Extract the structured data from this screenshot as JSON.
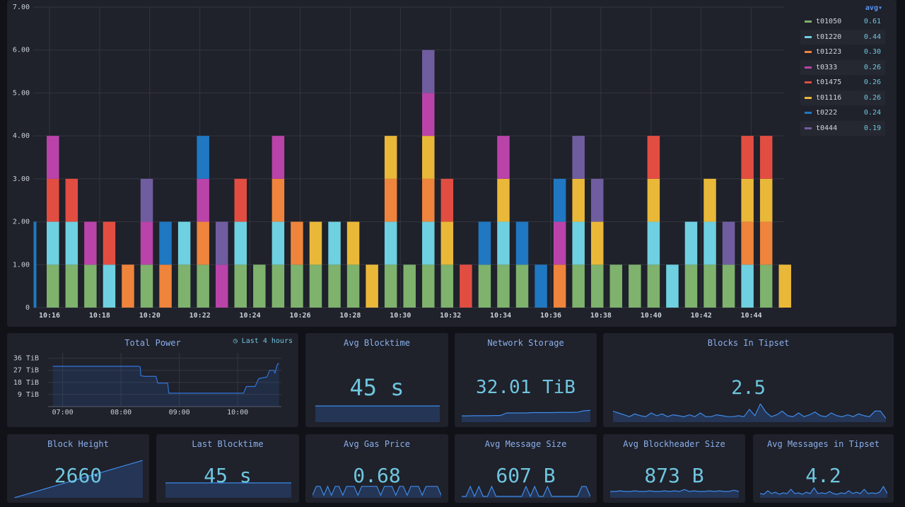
{
  "chart_data": [
    {
      "type": "bar",
      "title": "",
      "stacked": true,
      "ylim": [
        0,
        7
      ],
      "yticks": [
        "0",
        "1.00",
        "2.00",
        "3.00",
        "4.00",
        "5.00",
        "6.00",
        "7.00"
      ],
      "xtick_labels": [
        "10:16",
        "10:18",
        "10:20",
        "10:22",
        "10:24",
        "10:26",
        "10:28",
        "10:30",
        "10:32",
        "10:34",
        "10:36",
        "10:38",
        "10:40",
        "10:42",
        "10:44"
      ],
      "xtick_every": 4,
      "xtick_start": 1,
      "series_keys": [
        "t01050",
        "t01220",
        "t01223",
        "t0333",
        "t01475",
        "t01116",
        "t0222",
        "t0444"
      ],
      "stacks": [
        [
          [
            "t0222",
            2
          ]
        ],
        [
          [
            "t01050",
            1
          ],
          [
            "t01220",
            1
          ],
          [
            "t01475",
            1
          ],
          [
            "t0333",
            1
          ]
        ],
        [
          [
            "t01050",
            1
          ],
          [
            "t01220",
            1
          ],
          [
            "t01475",
            1
          ]
        ],
        [
          [
            "t01050",
            1
          ],
          [
            "t0333",
            1
          ]
        ],
        [
          [
            "t01220",
            1
          ],
          [
            "t01475",
            1
          ]
        ],
        [
          [
            "t01223",
            1
          ]
        ],
        [
          [
            "t01050",
            1
          ],
          [
            "t0333",
            1
          ],
          [
            "t0444",
            1
          ]
        ],
        [
          [
            "t01223",
            1
          ],
          [
            "t0222",
            1
          ]
        ],
        [
          [
            "t01050",
            1
          ],
          [
            "t01220",
            1
          ]
        ],
        [
          [
            "t01050",
            1
          ],
          [
            "t01223",
            1
          ],
          [
            "t0333",
            1
          ],
          [
            "t0222",
            1
          ]
        ],
        [
          [
            "t0333",
            1
          ],
          [
            "t0444",
            1
          ]
        ],
        [
          [
            "t01050",
            1
          ],
          [
            "t01220",
            1
          ],
          [
            "t01475",
            1
          ]
        ],
        [
          [
            "t01050",
            1
          ]
        ],
        [
          [
            "t01050",
            1
          ],
          [
            "t01220",
            1
          ],
          [
            "t01223",
            1
          ],
          [
            "t0333",
            1
          ]
        ],
        [
          [
            "t01050",
            1
          ],
          [
            "t01223",
            1
          ]
        ],
        [
          [
            "t01050",
            1
          ],
          [
            "t01116",
            1
          ]
        ],
        [
          [
            "t01050",
            1
          ],
          [
            "t01220",
            1
          ]
        ],
        [
          [
            "t01050",
            1
          ],
          [
            "t01116",
            1
          ]
        ],
        [
          [
            "t01116",
            1
          ]
        ],
        [
          [
            "t01050",
            1
          ],
          [
            "t01220",
            1
          ],
          [
            "t01223",
            1
          ],
          [
            "t01116",
            1
          ]
        ],
        [
          [
            "t01050",
            1
          ]
        ],
        [
          [
            "t01050",
            1
          ],
          [
            "t01220",
            1
          ],
          [
            "t01223",
            1
          ],
          [
            "t01116",
            1
          ],
          [
            "t0333",
            1
          ],
          [
            "t0444",
            1
          ]
        ],
        [
          [
            "t01050",
            1
          ],
          [
            "t01116",
            1
          ],
          [
            "t01475",
            1
          ]
        ],
        [
          [
            "t01475",
            1
          ]
        ],
        [
          [
            "t01050",
            1
          ],
          [
            "t0222",
            1
          ]
        ],
        [
          [
            "t01050",
            1
          ],
          [
            "t01220",
            1
          ],
          [
            "t01116",
            1
          ],
          [
            "t0333",
            1
          ]
        ],
        [
          [
            "t01050",
            1
          ],
          [
            "t0222",
            1
          ]
        ],
        [
          [
            "t0222",
            1
          ]
        ],
        [
          [
            "t01223",
            1
          ],
          [
            "t0333",
            1
          ],
          [
            "t0222",
            1
          ]
        ],
        [
          [
            "t01050",
            1
          ],
          [
            "t01220",
            1
          ],
          [
            "t01116",
            1
          ],
          [
            "t0444",
            1
          ]
        ],
        [
          [
            "t01050",
            1
          ],
          [
            "t01116",
            1
          ],
          [
            "t0444",
            1
          ]
        ],
        [
          [
            "t01050",
            1
          ]
        ],
        [
          [
            "t01050",
            1
          ]
        ],
        [
          [
            "t01050",
            1
          ],
          [
            "t01220",
            1
          ],
          [
            "t01116",
            1
          ],
          [
            "t01475",
            1
          ]
        ],
        [
          [
            "t01220",
            1
          ]
        ],
        [
          [
            "t01050",
            1
          ],
          [
            "t01220",
            1
          ]
        ],
        [
          [
            "t01050",
            1
          ],
          [
            "t01220",
            1
          ],
          [
            "t01116",
            1
          ]
        ],
        [
          [
            "t01050",
            1
          ],
          [
            "t0444",
            1
          ]
        ],
        [
          [
            "t01220",
            1
          ],
          [
            "t01223",
            1
          ],
          [
            "t01116",
            1
          ],
          [
            "t01475",
            1
          ]
        ],
        [
          [
            "t01050",
            1
          ],
          [
            "t01223",
            1
          ],
          [
            "t01116",
            1
          ],
          [
            "t01475",
            1
          ]
        ],
        [
          [
            "t01116",
            1
          ]
        ]
      ]
    },
    {
      "type": "line",
      "title": "Total Power",
      "ylim": [
        0,
        40
      ],
      "ytick_values": [
        9,
        18,
        27,
        36
      ],
      "ytick_labels": [
        "9 TiB",
        "18 TiB",
        "27 TiB",
        "36 TiB"
      ],
      "xlim": [
        6.75,
        10.75
      ],
      "xtick_values": [
        7,
        8,
        9,
        10
      ],
      "xtick_labels": [
        "07:00",
        "08:00",
        "09:00",
        "10:00"
      ],
      "x": [
        6.83,
        7.0,
        7.5,
        8.0,
        8.3,
        8.33,
        8.34,
        8.4,
        8.6,
        8.63,
        8.8,
        8.82,
        9.5,
        9.7,
        10.0,
        10.1,
        10.15,
        10.2,
        10.3,
        10.35,
        10.37,
        10.5,
        10.55,
        10.6,
        10.62,
        10.64,
        10.67,
        10.69,
        10.71
      ],
      "y": [
        30,
        30,
        30,
        30,
        30,
        29.5,
        23,
        22.5,
        22.5,
        17.5,
        17.5,
        10,
        10,
        10,
        10,
        10,
        15,
        15,
        15,
        20,
        21,
        22,
        27,
        27,
        27,
        25,
        30,
        32,
        32
      ]
    }
  ],
  "legend": {
    "header": "avg▾",
    "items": [
      {
        "name": "t01050",
        "avg": "0.61",
        "color": "#7eb26d"
      },
      {
        "name": "t01220",
        "avg": "0.44",
        "color": "#6ed0e0"
      },
      {
        "name": "t01223",
        "avg": "0.30",
        "color": "#ef843c"
      },
      {
        "name": "t0333",
        "avg": "0.26",
        "color": "#ba43a9"
      },
      {
        "name": "t01475",
        "avg": "0.26",
        "color": "#e24d42"
      },
      {
        "name": "t01116",
        "avg": "0.26",
        "color": "#eab839"
      },
      {
        "name": "t0222",
        "avg": "0.24",
        "color": "#1f78c1"
      },
      {
        "name": "t0444",
        "avg": "0.19",
        "color": "#705da0"
      }
    ]
  },
  "panels": {
    "total_power": {
      "title": "Total Power",
      "time_range": "Last 4 hours"
    },
    "avg_blocktime": {
      "title": "Avg Blocktime",
      "value": "45 s",
      "spark": [
        0.5,
        0.5,
        0.5,
        0.5,
        0.5,
        0.5,
        0.5,
        0.5,
        0.5,
        0.5,
        0.5,
        0.5
      ],
      "spark_mode": "flat"
    },
    "network_storage": {
      "title": "Network Storage",
      "value": "32.01 TiB",
      "spark": [
        0.34,
        0.34,
        0.35,
        0.35,
        0.35,
        0.36,
        0.36,
        0.5,
        0.5,
        0.5,
        0.5,
        0.52,
        0.52,
        0.52,
        0.52,
        0.53,
        0.53,
        0.53,
        0.54,
        0.62,
        0.64
      ],
      "spark_mode": "area"
    },
    "blocks_in_tipset": {
      "title": "Blocks In Tipset",
      "value": "2.5",
      "spark": [
        0.6,
        0.5,
        0.4,
        0.3,
        0.45,
        0.35,
        0.3,
        0.5,
        0.35,
        0.45,
        0.3,
        0.4,
        0.35,
        0.3,
        0.4,
        0.3,
        0.5,
        0.3,
        0.3,
        0.4,
        0.35,
        0.3,
        0.3,
        0.35,
        0.3,
        0.7,
        0.35,
        1.0,
        0.55,
        0.3,
        0.4,
        0.6,
        0.35,
        0.3,
        0.5,
        0.3,
        0.4,
        0.55,
        0.35,
        0.3,
        0.5,
        0.35,
        0.3,
        0.4,
        0.3,
        0.45,
        0.35,
        0.3,
        0.6,
        0.6,
        0.2
      ],
      "spark_mode": "area"
    },
    "block_height": {
      "title": "Block Height",
      "value": "2660",
      "spark": [
        0.0,
        0.05,
        0.1,
        0.15,
        0.2,
        0.25,
        0.3,
        0.35,
        0.4,
        0.45,
        0.5,
        0.55,
        0.6,
        0.65,
        0.7,
        0.75,
        0.8,
        0.85,
        0.9,
        0.95,
        1.0
      ],
      "spark_mode": "area"
    },
    "last_blocktime": {
      "title": "Last Blocktime",
      "value": "45 s",
      "spark": [
        0.5,
        0.5,
        0.5,
        0.5,
        0.5,
        0.5,
        0.5,
        0.5,
        0.5,
        0.5
      ],
      "spark_mode": "flat"
    },
    "avg_gas_price": {
      "title": "Avg Gas Price",
      "value": "0.68",
      "spark": [
        0.2,
        0.9,
        0.9,
        0.2,
        0.9,
        0.2,
        0.9,
        0.9,
        0.2,
        0.9,
        0.9,
        0.9,
        0.2,
        0.9,
        0.9,
        0.9,
        0.9,
        0.9,
        0.2,
        0.9,
        0.9,
        0.9,
        0.2,
        0.9,
        0.9,
        0.2,
        0.9,
        0.9,
        0.9,
        0.2,
        0.9,
        0.9,
        0.9,
        0.9,
        0.2
      ],
      "spark_mode": "area"
    },
    "avg_message_size": {
      "title": "Avg Message Size",
      "value": "607 B",
      "spark": [
        0.1,
        0.1,
        0.8,
        0.1,
        0.8,
        0.1,
        0.1,
        0.8,
        0.1,
        0.1,
        0.1,
        0.1,
        0.1,
        0.1,
        0.1,
        0.8,
        0.1,
        0.8,
        0.1,
        0.1,
        0.8,
        0.1,
        0.1,
        0.1,
        0.1,
        0.1,
        0.1,
        0.1,
        0.8,
        0.8,
        0.1
      ],
      "spark_mode": "area"
    },
    "avg_blockheader_size": {
      "title": "Avg Blockheader Size",
      "value": "873 B",
      "spark": [
        0.5,
        0.5,
        0.55,
        0.5,
        0.5,
        0.55,
        0.5,
        0.5,
        0.55,
        0.5,
        0.5,
        0.55,
        0.5,
        0.55,
        0.5,
        0.65,
        0.5,
        0.55,
        0.5,
        0.5,
        0.55,
        0.5,
        0.55,
        0.5,
        0.5,
        0.6,
        0.5
      ],
      "spark_mode": "area"
    },
    "avg_messages_in_tipset": {
      "title": "Avg Messages in Tipset",
      "value": "4.2",
      "spark": [
        0.3,
        0.25,
        0.5,
        0.3,
        0.4,
        0.25,
        0.35,
        0.3,
        0.6,
        0.3,
        0.35,
        0.25,
        0.4,
        0.3,
        0.7,
        0.3,
        0.35,
        0.3,
        0.45,
        0.3,
        0.25,
        0.35,
        0.3,
        0.5,
        0.3,
        0.4,
        0.3,
        0.6,
        0.3,
        0.35,
        0.3,
        0.4,
        0.8,
        0.3
      ],
      "spark_mode": "area"
    }
  }
}
